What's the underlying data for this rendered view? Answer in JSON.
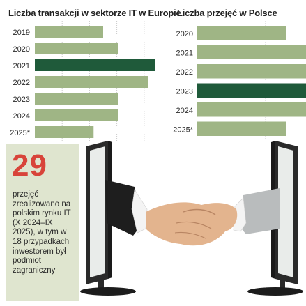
{
  "chart_data": [
    {
      "type": "bar",
      "orientation": "horizontal",
      "title": "Liczba transakcji w sektorze IT w Europie",
      "categories": [
        "2019",
        "2020",
        "2021",
        "2022",
        "2023",
        "2024",
        "2025*"
      ],
      "values": [
        50,
        61,
        88,
        83,
        61,
        61,
        43
      ],
      "highlight": "2021",
      "xlim": [
        0,
        100
      ],
      "grid": true
    },
    {
      "type": "bar",
      "orientation": "horizontal",
      "title": "Liczba przejęć w Polsce",
      "categories": [
        "2020",
        "2021",
        "2022",
        "2023",
        "2024",
        "2025*"
      ],
      "values": [
        52,
        68,
        70,
        75,
        70,
        52
      ],
      "highlight": "2023",
      "xlim": [
        0,
        80
      ],
      "grid": true
    }
  ],
  "stat": {
    "number": "29",
    "text": "przejęć zrealizowano na polskim rynku IT (X 2024–IX 2025), w tym w 18 przypadkach inwestorem był podmiot zagraniczny"
  },
  "colors": {
    "bar": "#9fb585",
    "bar_highlight": "#1f5a3a",
    "number": "#d8443a",
    "box_bg": "#dfe5cf",
    "grid": "#c9c9c9"
  },
  "illustration": [
    "monitor-icon",
    "monitor-icon",
    "handshake-icon"
  ]
}
